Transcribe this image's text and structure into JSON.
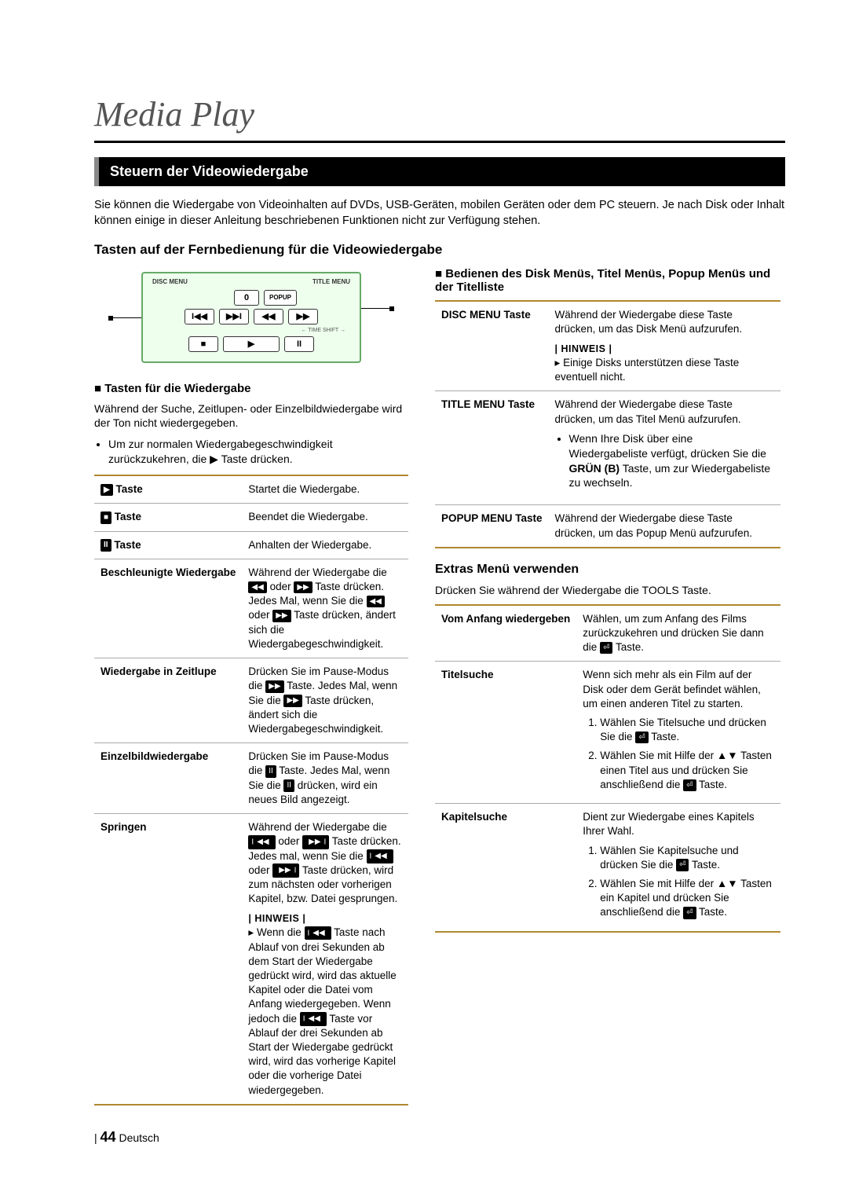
{
  "chapter_title": "Media Play",
  "section_bar": "Steuern der Videowiedergabe",
  "intro": "Sie können die Wiedergabe von Videoinhalten auf DVDs, USB-Geräten, mobilen Geräten oder dem PC steuern. Je nach Disk oder Inhalt können einige in dieser Anleitung beschriebenen Funktionen nicht zur Verfügung stehen.",
  "subsection_title": "Tasten auf der Fernbedienung für die Videowiedergabe",
  "remote": {
    "top_left": "DISC MENU",
    "top_right": "TITLE MENU",
    "num": "0",
    "popup": "POPUP",
    "r1": [
      "I◀◀",
      "▶▶I",
      "◀◀",
      "▶▶"
    ],
    "timeshift": "← TIME SHIFT →",
    "r2": [
      "■",
      "▶",
      "II"
    ]
  },
  "left": {
    "heading": "Tasten für die Wiedergabe",
    "para": "Während der Suche, Zeitlupen- oder Einzelbildwiedergabe wird der Ton nicht wiedergegeben.",
    "bullet": "Um zur normalen Wiedergabegeschwindigkeit zurückzukehren, die ▶ Taste drücken.",
    "rows": [
      {
        "h": "▶ Taste",
        "d": "Startet die Wiedergabe."
      },
      {
        "h": "■ Taste",
        "d": "Beendet die Wiedergabe."
      },
      {
        "h": "II Taste",
        "d": "Anhalten der Wiedergabe."
      },
      {
        "h": "Beschleunigte Wiedergabe",
        "d": "Während der Wiedergabe die ◀◀ oder ▶▶ Taste drücken.\nJedes Mal, wenn Sie die ◀◀ oder ▶▶ Taste drücken, ändert sich die Wiedergabegeschwindigkeit."
      },
      {
        "h": "Wiedergabe in Zeitlupe",
        "d": "Drücken Sie im Pause-Modus die ▶▶ Taste. Jedes Mal, wenn Sie die ▶▶ Taste drücken, ändert sich die Wiedergabegeschwindigkeit."
      },
      {
        "h": "Einzelbildwiedergabe",
        "d": "Drücken Sie im Pause-Modus die II Taste. Jedes Mal, wenn Sie die II drücken, wird ein neues Bild angezeigt."
      },
      {
        "h": "Springen",
        "d": "Während der Wiedergabe die I◀◀ oder ▶▶I Taste drücken.\nJedes mal, wenn Sie die I◀◀ oder ▶▶I Taste drücken, wird zum nächsten oder vorherigen Kapitel, bzw. Datei gesprungen.",
        "note_label": "| HINWEIS |",
        "note": "Wenn die I◀◀ Taste nach Ablauf von drei Sekunden ab dem Start der Wiedergabe gedrückt wird, wird das aktuelle Kapitel oder die Datei vom Anfang wiedergegeben. Wenn jedoch die I◀◀ Taste vor Ablauf der drei Sekunden ab Start der Wiedergabe gedrückt wird, wird das vorherige Kapitel oder die vorherige Datei wiedergegeben."
      }
    ]
  },
  "right": {
    "heading": "Bedienen des Disk Menüs, Titel Menüs, Popup Menüs und der Titelliste",
    "rows": [
      {
        "h": "DISC MENU Taste",
        "d": "Während der Wiedergabe diese Taste drücken, um das Disk Menü aufzurufen.",
        "note_label": "| HINWEIS |",
        "note": "Einige Disks unterstützen diese Taste eventuell nicht."
      },
      {
        "h": "TITLE MENU Taste",
        "d": "Während der Wiedergabe diese Taste drücken, um das Titel Menü aufzurufen.",
        "bullet": "Wenn Ihre Disk über eine Wiedergabeliste verfügt, drücken Sie die GRÜN (B) Taste, um zur Wiedergabeliste zu wechseln."
      },
      {
        "h": "POPUP MENU Taste",
        "d": "Während der Wiedergabe diese Taste drücken, um das Popup Menü aufzurufen."
      }
    ],
    "extras_title": "Extras Menü verwenden",
    "extras_intro": "Drücken Sie während der Wiedergabe die TOOLS Taste.",
    "extras_rows": [
      {
        "h": "Vom Anfang wiedergeben",
        "d": "Wählen, um zum Anfang des Films zurückzukehren und drücken Sie dann die ⏎ Taste."
      },
      {
        "h": "Titelsuche",
        "d": "Wenn sich mehr als ein Film auf der Disk oder dem Gerät befindet wählen, um einen anderen Titel zu starten.",
        "list": [
          "Wählen Sie Titelsuche und drücken Sie die ⏎ Taste.",
          "Wählen Sie mit Hilfe der ▲▼ Tasten einen Titel aus und drücken Sie anschließend die ⏎ Taste."
        ]
      },
      {
        "h": "Kapitelsuche",
        "d": "Dient zur Wiedergabe eines Kapitels Ihrer Wahl.",
        "list": [
          "Wählen Sie Kapitelsuche und drücken Sie die ⏎ Taste.",
          "Wählen Sie mit Hilfe der ▲▼ Tasten ein Kapitel und drücken Sie anschließend die ⏎ Taste."
        ]
      }
    ]
  },
  "footer": {
    "page": "44",
    "lang": "Deutsch"
  },
  "colors": {
    "accent_border": "#b08830"
  }
}
